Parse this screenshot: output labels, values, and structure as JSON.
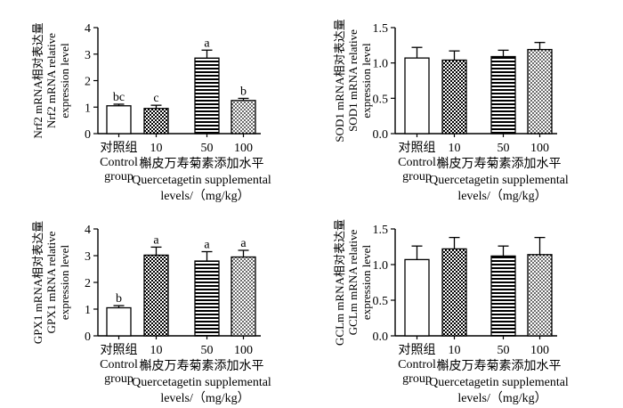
{
  "chart_data": [
    {
      "type": "bar",
      "categories": [
        "对照组\nControl\ngroup",
        "10",
        "50",
        "100"
      ],
      "values": [
        1.05,
        0.95,
        2.85,
        1.25
      ],
      "errors": [
        0.06,
        0.12,
        0.3,
        0.08
      ],
      "significance": [
        "bc",
        "c",
        "a",
        "b"
      ],
      "ylabel": [
        "Nrf2 mRNA相对表达量",
        "Nrf2 mRNA relative",
        "expression level"
      ],
      "xlabel": [
        "槲皮万寿菊素添加水平",
        "Quercetagetin supplemental",
        "levels/（mg/kg）"
      ],
      "ylim": [
        0,
        4
      ],
      "yticks": [
        "0",
        "1",
        "2",
        "3",
        "4"
      ],
      "patterns": [
        "white",
        "checker",
        "hlines",
        "dots"
      ]
    },
    {
      "type": "bar",
      "categories": [
        "对照组\nControl\ngroup",
        "10",
        "50",
        "100"
      ],
      "values": [
        1.07,
        1.04,
        1.09,
        1.19
      ],
      "errors": [
        0.15,
        0.13,
        0.09,
        0.1
      ],
      "significance": [
        "",
        "",
        "",
        ""
      ],
      "ylabel": [
        "SOD1 mRNA相对表达量",
        "SOD1 mRNA relative",
        "expression level"
      ],
      "xlabel": [
        "槲皮万寿菊素添加水平",
        "Quercetagetin supplemental",
        "levels/（mg/kg）"
      ],
      "ylim": [
        0,
        1.5
      ],
      "yticks": [
        "0.0",
        "0.5",
        "1.0",
        "1.5"
      ],
      "patterns": [
        "white",
        "checker",
        "hlines",
        "dots"
      ]
    },
    {
      "type": "bar",
      "categories": [
        "对照组\nControl\ngroup",
        "10",
        "50",
        "100"
      ],
      "values": [
        1.05,
        3.02,
        2.8,
        2.95
      ],
      "errors": [
        0.08,
        0.3,
        0.35,
        0.25
      ],
      "significance": [
        "b",
        "a",
        "a",
        "a"
      ],
      "ylabel": [
        "GPX1 mRNA相对表达量",
        "GPX1 mRNA relative",
        "expression level"
      ],
      "xlabel": [
        "槲皮万寿菊素添加水平",
        "Quercetagetin supplemental",
        "levels/（mg/kg）"
      ],
      "ylim": [
        0,
        4
      ],
      "yticks": [
        "0",
        "1",
        "2",
        "3",
        "4"
      ],
      "patterns": [
        "white",
        "checker",
        "hlines",
        "dots"
      ]
    },
    {
      "type": "bar",
      "categories": [
        "对照组\nControl\ngroup",
        "10",
        "50",
        "100"
      ],
      "values": [
        1.07,
        1.22,
        1.12,
        1.14
      ],
      "errors": [
        0.19,
        0.16,
        0.14,
        0.24
      ],
      "significance": [
        "",
        "",
        "",
        ""
      ],
      "ylabel": [
        "GCLm mRNA相对表达量",
        "GCLm mRNA relative",
        "expression level"
      ],
      "xlabel": [
        "槲皮万寿菊素添加水平",
        "Quercetagetin supplemental",
        "levels/（mg/kg）"
      ],
      "ylim": [
        0,
        1.5
      ],
      "yticks": [
        "0.0",
        "0.5",
        "1.0",
        "1.5"
      ],
      "patterns": [
        "white",
        "checker",
        "hlines",
        "dots"
      ]
    }
  ]
}
